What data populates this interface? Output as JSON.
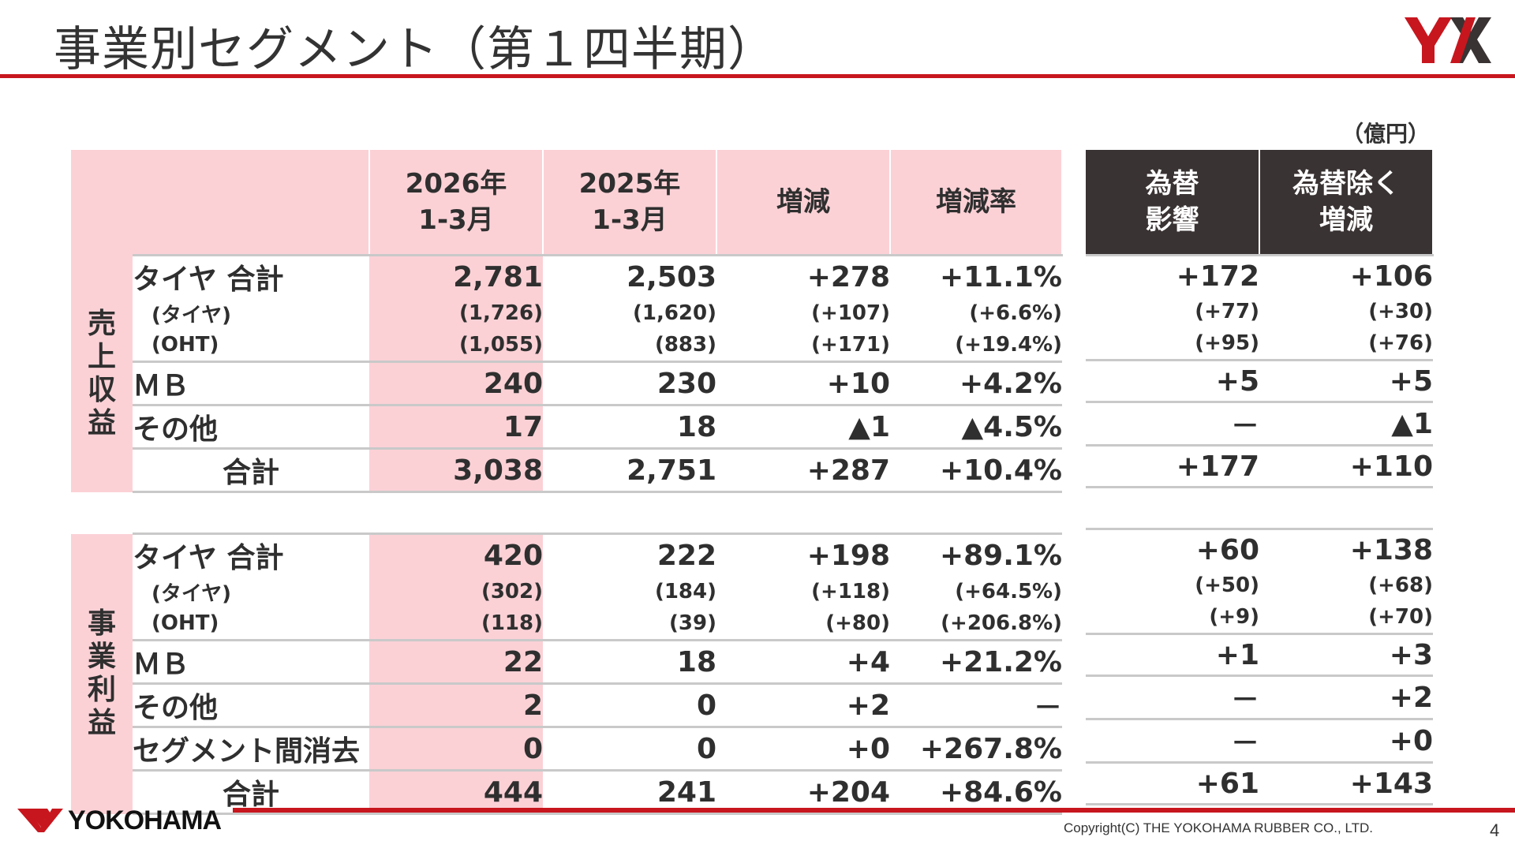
{
  "title": "事業別セグメント（第１四半期）",
  "unit": "（億円）",
  "header": {
    "col2026": [
      "2026年",
      "1-3月"
    ],
    "col2025": [
      "2025年",
      "1-3月"
    ],
    "change": "増減",
    "rate": "増減率",
    "fx": [
      "為替",
      "影響"
    ],
    "exfx": [
      "為替除く",
      "増減"
    ]
  },
  "revenue": {
    "side_label": "売上収益",
    "rows": [
      {
        "label": "タイヤ 合計",
        "type": "big",
        "v2026": "2,781",
        "v2025": "2,503",
        "change": "+278",
        "rate": "+11.1%",
        "fx": "+172",
        "exfx": "+106"
      },
      {
        "label": "(タイヤ)",
        "type": "sub",
        "v2026": "(1,726)",
        "v2025": "(1,620)",
        "change": "(+107)",
        "rate": "(+6.6%)",
        "fx": "(+77)",
        "exfx": "(+30)"
      },
      {
        "label": "(OHT)",
        "type": "sub",
        "v2026": "(1,055)",
        "v2025": "(883)",
        "change": "(+171)",
        "rate": "(+19.4%)",
        "fx": "(+95)",
        "exfx": "(+76)"
      },
      {
        "label": "ＭＢ",
        "type": "big",
        "v2026": "240",
        "v2025": "230",
        "change": "+10",
        "rate": "+4.2%",
        "fx": "+5",
        "exfx": "+5"
      },
      {
        "label": "その他",
        "type": "big",
        "v2026": "17",
        "v2025": "18",
        "change": "▲1",
        "rate": "▲4.5%",
        "fx": "－",
        "exfx": "▲1"
      },
      {
        "label": "合計",
        "type": "total",
        "v2026": "3,038",
        "v2025": "2,751",
        "change": "+287",
        "rate": "+10.4%",
        "fx": "+177",
        "exfx": "+110"
      }
    ]
  },
  "profit": {
    "side_label": "事業利益",
    "rows": [
      {
        "label": "タイヤ 合計",
        "type": "big",
        "v2026": "420",
        "v2025": "222",
        "change": "+198",
        "rate": "+89.1%",
        "fx": "+60",
        "exfx": "+138"
      },
      {
        "label": "(タイヤ)",
        "type": "sub",
        "v2026": "(302)",
        "v2025": "(184)",
        "change": "(+118)",
        "rate": "(+64.5%)",
        "fx": "(+50)",
        "exfx": "(+68)"
      },
      {
        "label": "(OHT)",
        "type": "sub",
        "v2026": "(118)",
        "v2025": "(39)",
        "change": "(+80)",
        "rate": "(+206.8%)",
        "fx": "(+9)",
        "exfx": "(+70)"
      },
      {
        "label": "ＭＢ",
        "type": "big",
        "v2026": "22",
        "v2025": "18",
        "change": "+4",
        "rate": "+21.2%",
        "fx": "+1",
        "exfx": "+3"
      },
      {
        "label": "その他",
        "type": "big",
        "v2026": "2",
        "v2025": "0",
        "change": "+2",
        "rate": "－",
        "fx": "－",
        "exfx": "+2"
      },
      {
        "label": "セグメント間消去",
        "type": "big",
        "v2026": "0",
        "v2025": "0",
        "change": "+0",
        "rate": "+267.8%",
        "fx": "－",
        "exfx": "+0"
      },
      {
        "label": "合計",
        "type": "total",
        "v2026": "444",
        "v2025": "241",
        "change": "+204",
        "rate": "+84.6%",
        "fx": "+61",
        "exfx": "+143"
      }
    ]
  },
  "brand_logo": "YX",
  "footer": {
    "company_logo": "YOKOHAMA",
    "copyright": "Copyright(C) THE YOKOHAMA RUBBER CO., LTD.",
    "page": "4"
  },
  "colors": {
    "accent_red": "#c8161e",
    "pink": "#fbd1d6",
    "dark_header": "#3a3333"
  }
}
